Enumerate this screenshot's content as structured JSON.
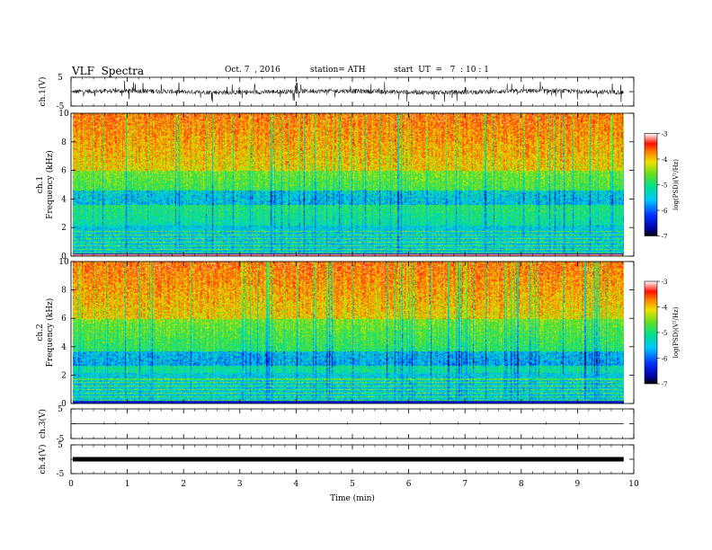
{
  "header": {
    "title": "VLF  Spectra",
    "date": "Oct. 7  , 2016",
    "station": "station= ATH",
    "start": "start  UT  =   7  : 10 : 1"
  },
  "chart_data": [
    {
      "type": "line",
      "ylabel": "ch.1(V)",
      "ylim": [
        -5,
        5
      ],
      "yticks": [
        "5",
        "-5"
      ],
      "description_values": {
        "baseline": 0,
        "amplitude_range": [
          -3.5,
          3.5
        ]
      }
    },
    {
      "type": "heatmap",
      "ylabel": [
        "ch.1",
        "Frequency  (kHz)"
      ],
      "ylim": [
        0,
        10
      ],
      "yticks": [
        "0",
        "2",
        "4",
        "6",
        "8",
        "10"
      ],
      "colorbar": {
        "label": "log(PSD)(V²/Hz)",
        "ticks": [
          "-3",
          "-4",
          "-5",
          "-6",
          "-7"
        ],
        "range": [
          -7,
          -3
        ]
      }
    },
    {
      "type": "heatmap",
      "ylabel": [
        "ch.2",
        "Frequency  (kHz)"
      ],
      "ylim": [
        0,
        10
      ],
      "yticks": [
        "0",
        "2",
        "4",
        "6",
        "8",
        "10"
      ],
      "colorbar": {
        "label": "log(PSD)(V²/Hz)",
        "ticks": [
          "-3",
          "-4",
          "-5",
          "-6",
          "-7"
        ],
        "range": [
          -7,
          -3
        ]
      }
    },
    {
      "type": "line",
      "ylabel": "ch.3(V)",
      "ylim": [
        -5,
        5
      ],
      "yticks": [
        "5",
        "-5"
      ],
      "description_values": {
        "baseline": 0
      }
    },
    {
      "type": "line",
      "ylabel": "ch.4(V)",
      "ylim": [
        -5,
        5
      ],
      "yticks": [
        "5",
        "-5"
      ],
      "description_values": {
        "baseline": 0
      }
    }
  ],
  "xaxis": {
    "label": "Time  (min)",
    "xlim": [
      0,
      10
    ],
    "ticks": [
      "0",
      "1",
      "2",
      "3",
      "4",
      "5",
      "6",
      "7",
      "8",
      "9",
      "10"
    ],
    "data_end": 9.82
  }
}
